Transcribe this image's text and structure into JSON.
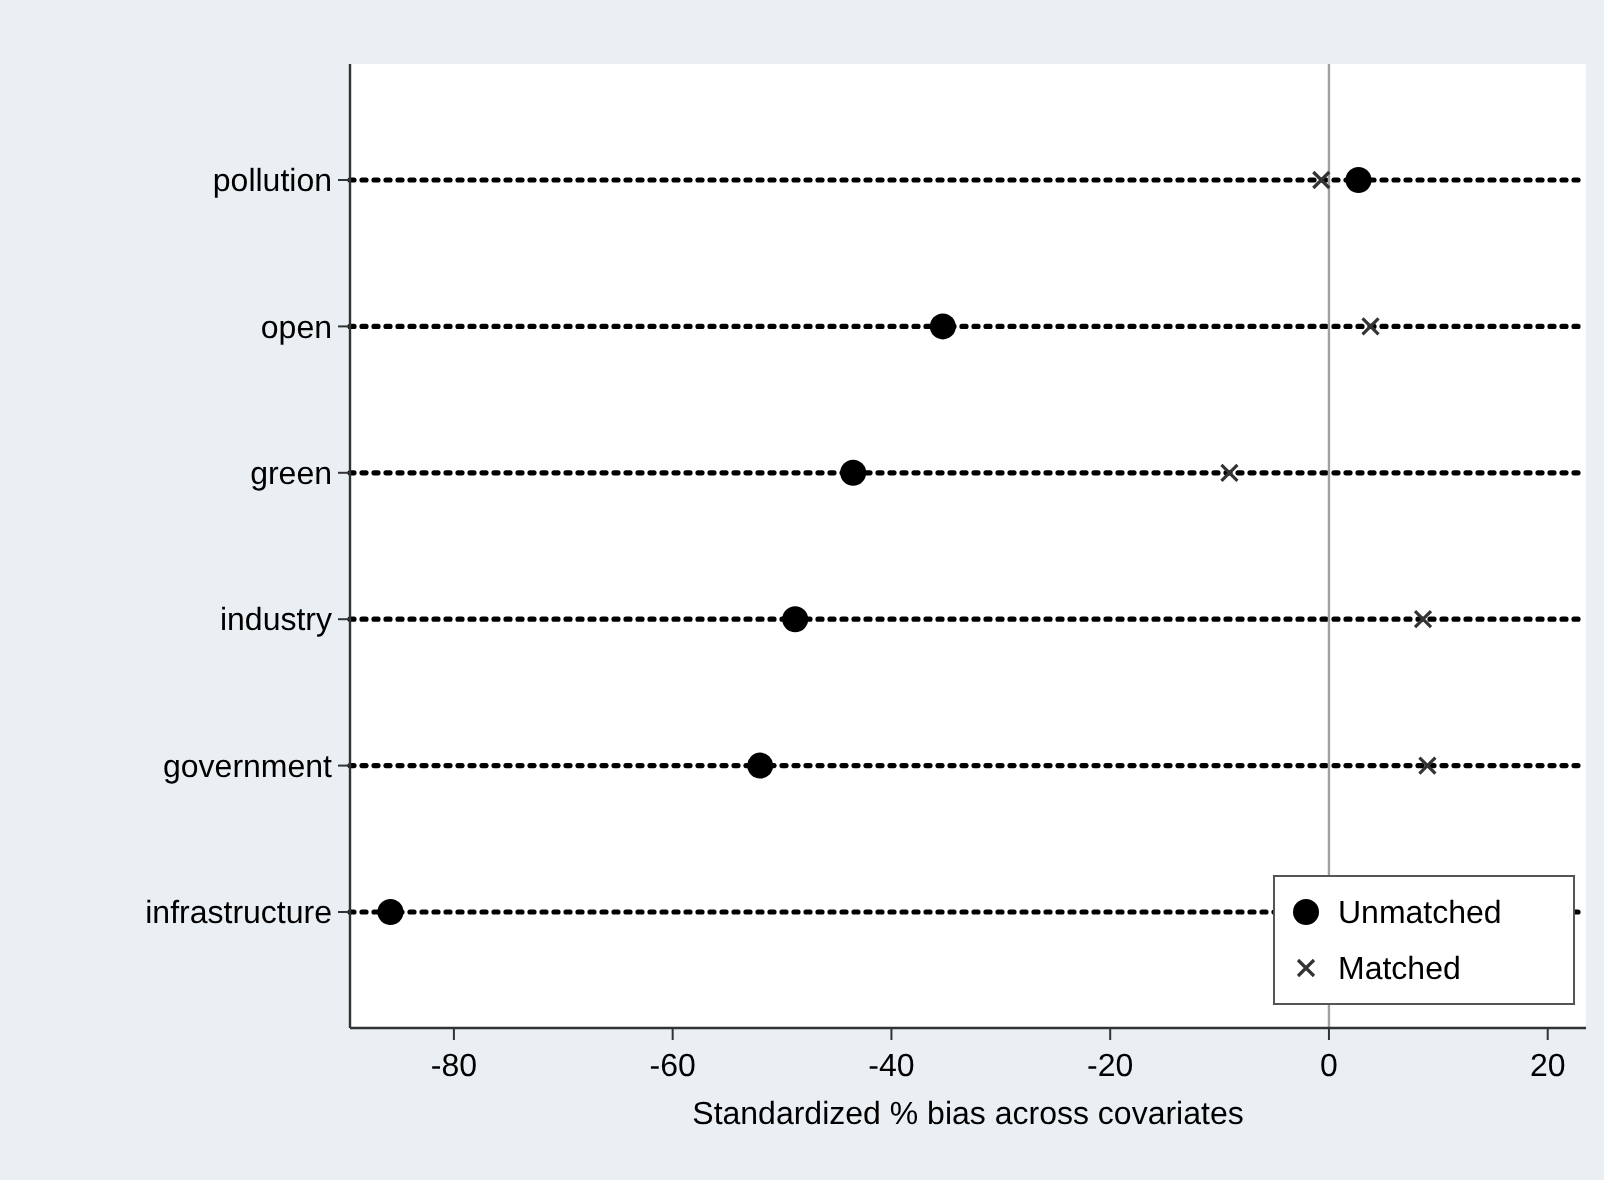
{
  "chart_data": {
    "type": "scatter",
    "orientation": "horizontal",
    "xlabel": "Standardized % bias across covariates",
    "categories": [
      "pollution",
      "open",
      "green",
      "industry",
      "government",
      "infrastructure"
    ],
    "series": [
      {
        "name": "Unmatched",
        "color": "#000000",
        "marker": "circle",
        "values": [
          2.7,
          -35.3,
          -43.5,
          -48.8,
          -52,
          -85.8
        ]
      },
      {
        "name": "Matched",
        "color": "#333333",
        "marker": "cross",
        "values": [
          -0.7,
          3.8,
          -9.1,
          8.6,
          9,
          null
        ]
      }
    ],
    "xlim": [
      -89.5,
      23.5
    ],
    "xticks": [
      -80,
      -60,
      -40,
      -20,
      0,
      20
    ],
    "grid": "y",
    "line_style": "dotted",
    "ref_lines": [
      {
        "axis": "x",
        "value": 0,
        "color": "#a0a0a0"
      }
    ],
    "legend": "bottom right"
  }
}
